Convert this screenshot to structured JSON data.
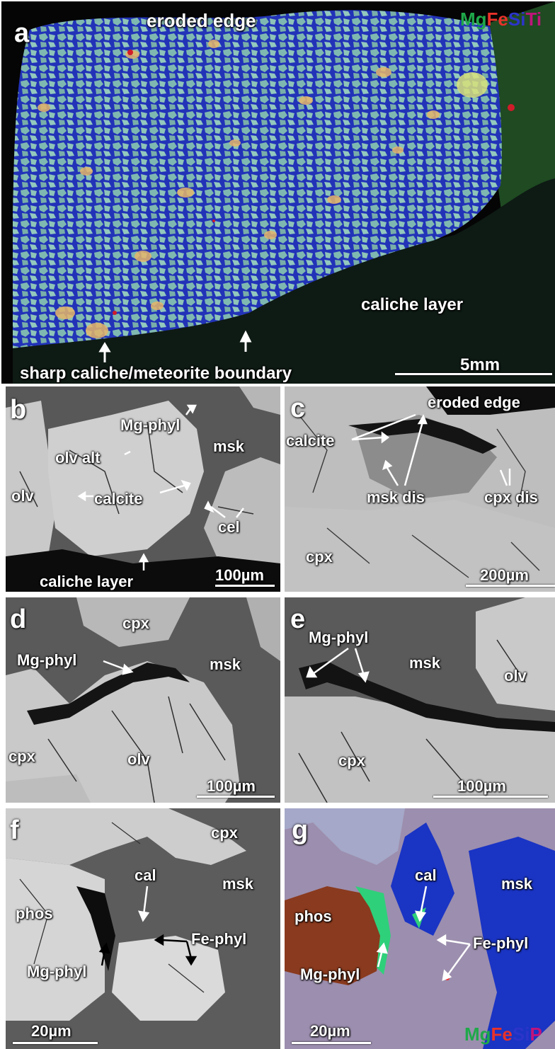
{
  "panel_a": {
    "letter": "a",
    "title": "eroded edge",
    "legend": [
      "Mg",
      "Fe",
      "Si",
      "Ti"
    ],
    "legend_colors": [
      "#1fa84a",
      "#e8322a",
      "#2c35c9",
      "#c0147a"
    ],
    "caliche": "caliche layer",
    "boundary": "sharp caliche/meteorite boundary",
    "scale": "5mm"
  },
  "panel_b": {
    "letter": "b",
    "labels": {
      "mgphyl": "Mg-phyl",
      "msk": "msk",
      "olvalt": "olv alt",
      "olv": "olv",
      "calcite": "calcite",
      "cel": "cel",
      "caliche": "caliche layer"
    },
    "scale": "100µm"
  },
  "panel_c": {
    "letter": "c",
    "labels": {
      "eroded": "eroded edge",
      "calcite": "calcite",
      "mskdis": "msk dis",
      "cpxdis": "cpx dis",
      "cpx": "cpx"
    },
    "scale": "200µm"
  },
  "panel_d": {
    "letter": "d",
    "labels": {
      "cpx_top": "cpx",
      "mgphyl": "Mg-phyl",
      "msk": "msk",
      "cpx_left": "cpx",
      "olv": "olv"
    },
    "scale": "100µm"
  },
  "panel_e": {
    "letter": "e",
    "labels": {
      "mgphyl": "Mg-phyl",
      "msk": "msk",
      "olv": "olv",
      "cpx": "cpx"
    },
    "scale": "100µm"
  },
  "panel_f": {
    "letter": "f",
    "labels": {
      "cpx": "cpx",
      "cal": "cal",
      "msk": "msk",
      "phos": "phos",
      "fephyl": "Fe-phyl",
      "mgphyl": "Mg-phyl"
    },
    "scale": "20µm"
  },
  "panel_g": {
    "letter": "g",
    "labels": {
      "cal": "cal",
      "msk": "msk",
      "phos": "phos",
      "fephyl": "Fe-phyl",
      "mgphyl": "Mg-phyl"
    },
    "legend": [
      "Mg",
      "Fe",
      "Si",
      "P"
    ],
    "legend_colors": [
      "#1fa84a",
      "#e8322a",
      "#2c35c9",
      "#c0147a"
    ],
    "scale": "20µm"
  }
}
